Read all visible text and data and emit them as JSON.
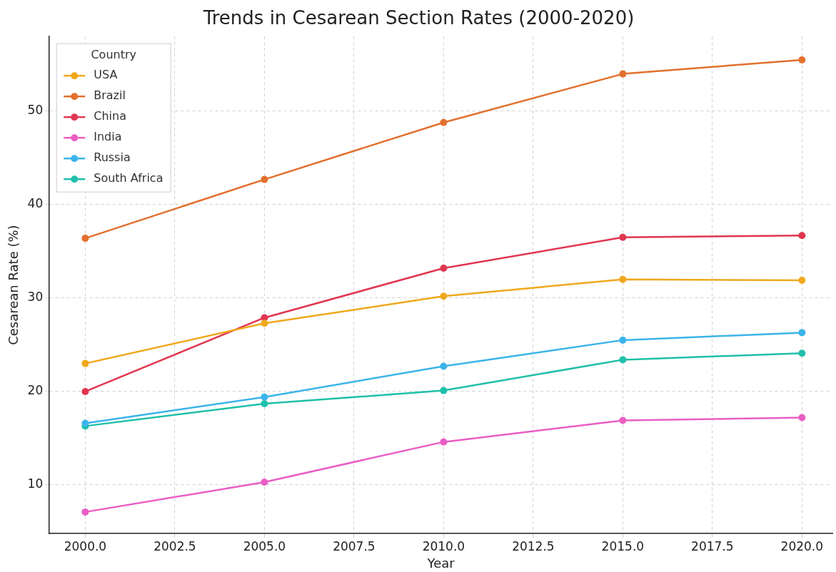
{
  "chart_data": {
    "type": "line",
    "title": "Trends in Cesarean Section Rates (2000-2020)",
    "xlabel": "Year",
    "ylabel": "Cesarean Rate (%)",
    "legend_title": "Country",
    "x": [
      2000,
      2005,
      2010,
      2015,
      2020
    ],
    "series": [
      {
        "name": "USA",
        "color": "#f0a81c",
        "values": [
          23.0,
          27.3,
          30.2,
          32.0,
          31.9
        ]
      },
      {
        "name": "Brazil",
        "color": "#e2702e",
        "values": [
          36.4,
          42.7,
          48.8,
          54.0,
          55.5
        ]
      },
      {
        "name": "China",
        "color": "#e0364f",
        "values": [
          20.0,
          27.9,
          33.2,
          36.5,
          36.7
        ]
      },
      {
        "name": "India",
        "color": "#ea5ec4",
        "values": [
          7.1,
          10.3,
          14.6,
          16.9,
          17.2
        ]
      },
      {
        "name": "Russia",
        "color": "#3bb4ea",
        "values": [
          16.6,
          19.4,
          22.7,
          25.5,
          26.3
        ]
      },
      {
        "name": "South Africa",
        "color": "#1fbfaa",
        "values": [
          16.3,
          18.7,
          20.1,
          23.4,
          24.1
        ]
      }
    ],
    "xlim": [
      1999,
      2020.85
    ],
    "ylim": [
      4.8,
      58
    ],
    "xticks": [
      {
        "value": 2000,
        "label": "2000.0"
      },
      {
        "value": 2002.5,
        "label": "2002.5"
      },
      {
        "value": 2005,
        "label": "2005.0"
      },
      {
        "value": 2007.5,
        "label": "2007.5"
      },
      {
        "value": 2010,
        "label": "2010.0"
      },
      {
        "value": 2012.5,
        "label": "2012.5"
      },
      {
        "value": 2015,
        "label": "2015.0"
      },
      {
        "value": 2017.5,
        "label": "2017.5"
      },
      {
        "value": 2020,
        "label": "2020.0"
      }
    ],
    "yticks": [
      10,
      20,
      30,
      40,
      50
    ],
    "grid": true,
    "legend": "top left",
    "marker": "circle",
    "line_style": "solid"
  }
}
